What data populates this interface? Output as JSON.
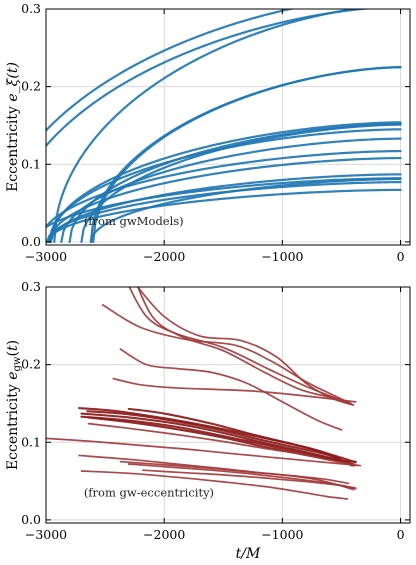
{
  "chart_data": [
    {
      "type": "line",
      "ylabel": "Eccentricity e_ξ(t)",
      "xlabel": "",
      "annotation": "(from gwModels)",
      "xlim": [
        -3000,
        80
      ],
      "ylim": [
        -0.004,
        0.3
      ],
      "xticks": [
        -3000,
        -2000,
        -1000,
        0
      ],
      "xtick_labels": [
        "−3000",
        "−2000",
        "−1000",
        "0"
      ],
      "yticks": [
        0.0,
        0.1,
        0.2,
        0.3
      ],
      "ytick_labels": [
        "0.0",
        "0.1",
        "0.2",
        "0.3"
      ],
      "grid": true,
      "color": "#1f77b4",
      "model": "e0 * sqrt(1 - (t/T)^1.7) for t >= T",
      "series": [
        {
          "T": -3430,
          "e0": 0.318
        },
        {
          "T": -3340,
          "e0": 0.303
        },
        {
          "T": -2930,
          "e0": 0.305
        },
        {
          "T": -2620,
          "e0": 0.225
        },
        {
          "T": -2600,
          "e0": 0.225
        },
        {
          "T": -2960,
          "e0": 0.154
        },
        {
          "T": -2800,
          "e0": 0.152
        },
        {
          "T": -2700,
          "e0": 0.151
        },
        {
          "T": -2970,
          "e0": 0.145
        },
        {
          "T": -2870,
          "e0": 0.133
        },
        {
          "T": -3050,
          "e0": 0.117
        },
        {
          "T": -2970,
          "e0": 0.108
        },
        {
          "T": -2960,
          "e0": 0.087
        },
        {
          "T": -3100,
          "e0": 0.082
        },
        {
          "T": -2620,
          "e0": 0.081
        },
        {
          "T": -2990,
          "e0": 0.077
        },
        {
          "T": -2980,
          "e0": 0.067
        }
      ]
    },
    {
      "type": "line",
      "ylabel": "Eccentricity e_gw(t)",
      "xlabel": "t/M",
      "annotation": "(from gw-eccentricity)",
      "xlim": [
        -3000,
        80
      ],
      "ylim": [
        -0.004,
        0.3
      ],
      "xticks": [
        -3000,
        -2000,
        -1000,
        0
      ],
      "xtick_labels": [
        "−3000",
        "−2000",
        "−1000",
        "0"
      ],
      "yticks": [
        0.0,
        0.1,
        0.2,
        0.3
      ],
      "ytick_labels": [
        "0.0",
        "0.1",
        "0.2",
        "0.3"
      ],
      "grid": true,
      "series": [
        {
          "color": "#a33a3a",
          "points": [
            [
              -2520,
              0.277
            ],
            [
              -2200,
              0.248
            ],
            [
              -1800,
              0.232
            ],
            [
              -1400,
              0.225
            ],
            [
              -1100,
              0.205
            ],
            [
              -800,
              0.178
            ],
            [
              -560,
              0.16
            ],
            [
              -420,
              0.15
            ]
          ]
        },
        {
          "color": "#a33a3a",
          "points": [
            [
              -2330,
              0.311
            ],
            [
              -2150,
              0.262
            ],
            [
              -1900,
              0.24
            ],
            [
              -1500,
              0.222
            ],
            [
              -1100,
              0.193
            ],
            [
              -800,
              0.172
            ],
            [
              -550,
              0.157
            ],
            [
              -400,
              0.148
            ]
          ]
        },
        {
          "color": "#a33a3a",
          "points": [
            [
              -2280,
              0.322
            ],
            [
              -2100,
              0.262
            ],
            [
              -1850,
              0.236
            ],
            [
              -1500,
              0.218
            ],
            [
              -1150,
              0.19
            ],
            [
              -850,
              0.168
            ],
            [
              -600,
              0.158
            ],
            [
              -430,
              0.15
            ]
          ]
        },
        {
          "color": "#a33a3a",
          "points": [
            [
              -2240,
              0.303
            ],
            [
              -2000,
              0.262
            ],
            [
              -1700,
              0.237
            ],
            [
              -1350,
              0.231
            ],
            [
              -1050,
              0.21
            ],
            [
              -800,
              0.176
            ],
            [
              -570,
              0.156
            ],
            [
              -400,
              0.148
            ]
          ]
        },
        {
          "color": "#a33a3a",
          "points": [
            [
              -2370,
              0.22
            ],
            [
              -2150,
              0.2
            ],
            [
              -1900,
              0.195
            ],
            [
              -1600,
              0.19
            ],
            [
              -1300,
              0.176
            ],
            [
              -1000,
              0.152
            ],
            [
              -700,
              0.128
            ],
            [
              -500,
              0.116
            ]
          ]
        },
        {
          "color": "#a33a3a",
          "points": [
            [
              -2430,
              0.182
            ],
            [
              -2200,
              0.174
            ],
            [
              -1900,
              0.17
            ],
            [
              -1550,
              0.168
            ],
            [
              -1250,
              0.166
            ],
            [
              -950,
              0.162
            ],
            [
              -650,
              0.157
            ],
            [
              -380,
              0.152
            ]
          ]
        },
        {
          "color": "#8b1a1a",
          "points": [
            [
              -2720,
              0.144
            ],
            [
              -2400,
              0.14
            ],
            [
              -2000,
              0.131
            ],
            [
              -1600,
              0.12
            ],
            [
              -1200,
              0.107
            ],
            [
              -900,
              0.097
            ],
            [
              -650,
              0.087
            ],
            [
              -430,
              0.072
            ]
          ]
        },
        {
          "color": "#8b1a1a",
          "points": [
            [
              -2650,
              0.14
            ],
            [
              -2300,
              0.136
            ],
            [
              -1900,
              0.127
            ],
            [
              -1500,
              0.115
            ],
            [
              -1150,
              0.102
            ],
            [
              -850,
              0.092
            ],
            [
              -600,
              0.083
            ],
            [
              -410,
              0.07
            ]
          ]
        },
        {
          "color": "#8b1a1a",
          "points": [
            [
              -2700,
              0.137
            ],
            [
              -2300,
              0.132
            ],
            [
              -1900,
              0.124
            ],
            [
              -1500,
              0.112
            ],
            [
              -1150,
              0.099
            ],
            [
              -850,
              0.089
            ],
            [
              -600,
              0.08
            ],
            [
              -390,
              0.07
            ]
          ]
        },
        {
          "color": "#8b1a1a",
          "points": [
            [
              -2700,
              0.133
            ],
            [
              -2300,
              0.128
            ],
            [
              -1900,
              0.12
            ],
            [
              -1500,
              0.108
            ],
            [
              -1150,
              0.097
            ],
            [
              -850,
              0.087
            ],
            [
              -600,
              0.079
            ],
            [
              -400,
              0.072
            ]
          ]
        },
        {
          "color": "#8b1a1a",
          "points": [
            [
              -2300,
              0.143
            ],
            [
              -2000,
              0.137
            ],
            [
              -1600,
              0.124
            ],
            [
              -1250,
              0.11
            ],
            [
              -950,
              0.099
            ],
            [
              -700,
              0.089
            ],
            [
              -500,
              0.08
            ],
            [
              -380,
              0.074
            ]
          ]
        },
        {
          "color": "#8b1a1a",
          "points": [
            [
              -2640,
              0.132
            ],
            [
              -2300,
              0.126
            ],
            [
              -1900,
              0.117
            ],
            [
              -1500,
              0.106
            ],
            [
              -1150,
              0.094
            ],
            [
              -850,
              0.085
            ],
            [
              -600,
              0.078
            ],
            [
              -380,
              0.075
            ]
          ]
        },
        {
          "color": "#a33a3a",
          "points": [
            [
              -2640,
              0.124
            ],
            [
              -2300,
              0.118
            ],
            [
              -1900,
              0.11
            ],
            [
              -1500,
              0.101
            ],
            [
              -1150,
              0.092
            ],
            [
              -850,
              0.085
            ],
            [
              -600,
              0.077
            ],
            [
              -360,
              0.07
            ]
          ]
        },
        {
          "color": "#a33a3a",
          "points": [
            [
              -3000,
              0.105
            ],
            [
              -2600,
              0.101
            ],
            [
              -2200,
              0.096
            ],
            [
              -1800,
              0.091
            ],
            [
              -1400,
              0.085
            ],
            [
              -1050,
              0.08
            ],
            [
              -700,
              0.075
            ],
            [
              -340,
              0.07
            ]
          ]
        },
        {
          "color": "#a33a3a",
          "points": [
            [
              -2720,
              0.083
            ],
            [
              -2300,
              0.078
            ],
            [
              -1900,
              0.072
            ],
            [
              -1500,
              0.066
            ],
            [
              -1150,
              0.06
            ],
            [
              -850,
              0.056
            ],
            [
              -620,
              0.052
            ],
            [
              -440,
              0.047
            ]
          ]
        },
        {
          "color": "#a33a3a",
          "points": [
            [
              -2370,
              0.075
            ],
            [
              -2000,
              0.071
            ],
            [
              -1650,
              0.067
            ],
            [
              -1300,
              0.062
            ],
            [
              -1000,
              0.058
            ],
            [
              -750,
              0.053
            ],
            [
              -550,
              0.046
            ],
            [
              -400,
              0.039
            ]
          ]
        },
        {
          "color": "#a33a3a",
          "points": [
            [
              -2300,
              0.072
            ],
            [
              -1950,
              0.068
            ],
            [
              -1600,
              0.064
            ],
            [
              -1250,
              0.059
            ],
            [
              -950,
              0.054
            ],
            [
              -700,
              0.049
            ],
            [
              -520,
              0.045
            ],
            [
              -380,
              0.041
            ]
          ]
        },
        {
          "color": "#a33a3a",
          "points": [
            [
              -2180,
              0.064
            ],
            [
              -1850,
              0.061
            ],
            [
              -1500,
              0.058
            ],
            [
              -1150,
              0.054
            ],
            [
              -850,
              0.05
            ],
            [
              -650,
              0.047
            ],
            [
              -500,
              0.044
            ],
            [
              -380,
              0.04
            ]
          ]
        },
        {
          "color": "#a33a3a",
          "points": [
            [
              -2700,
              0.063
            ],
            [
              -2300,
              0.06
            ],
            [
              -1900,
              0.055
            ],
            [
              -1500,
              0.049
            ],
            [
              -1150,
              0.043
            ],
            [
              -850,
              0.036
            ],
            [
              -620,
              0.03
            ],
            [
              -450,
              0.027
            ]
          ]
        }
      ]
    }
  ]
}
